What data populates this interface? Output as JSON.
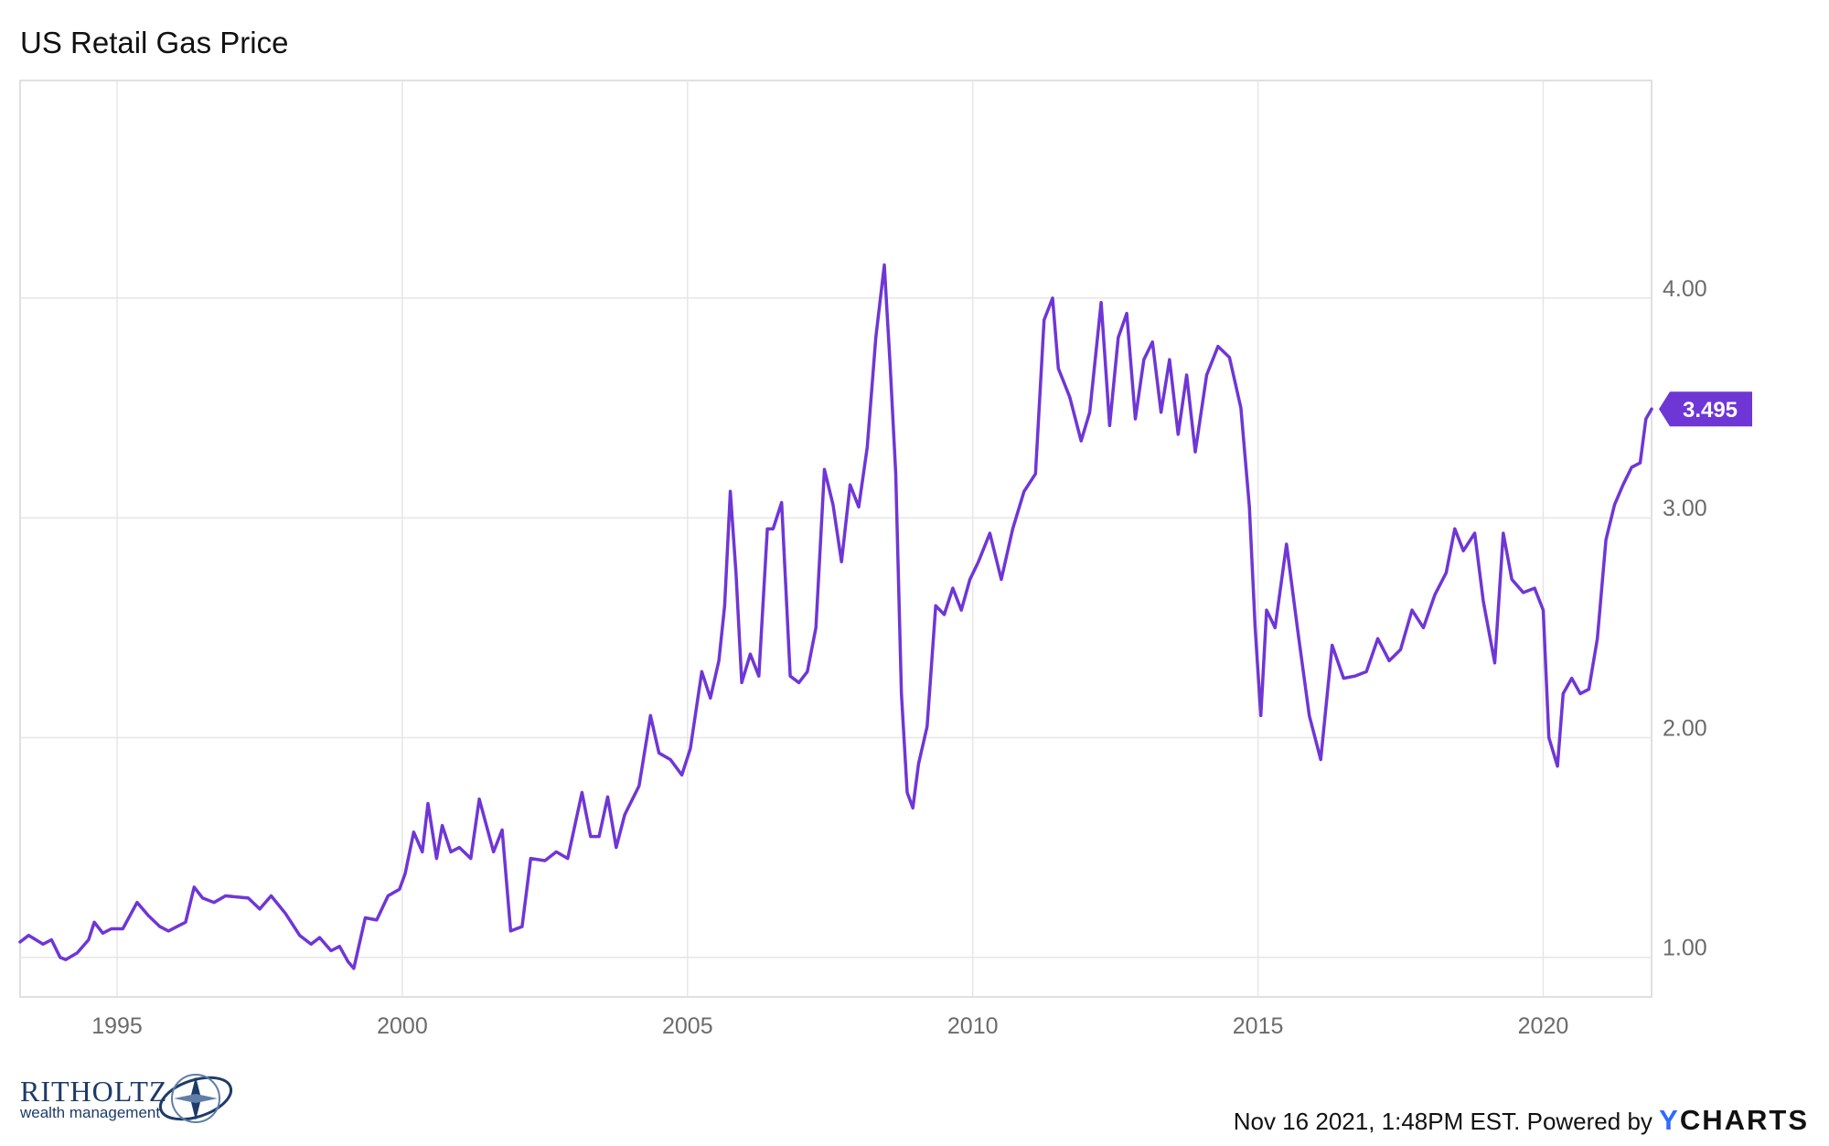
{
  "title": "US Retail Gas Price",
  "chart_data": {
    "type": "line",
    "title": "US Retail Gas Price",
    "xlabel": "",
    "ylabel": "",
    "x_ticks": [
      1995,
      2000,
      2005,
      2010,
      2015,
      2020
    ],
    "x_tick_labels": [
      "1995",
      "2000",
      "2005",
      "2010",
      "2015",
      "2020"
    ],
    "y_ticks": [
      1.0,
      2.0,
      3.0,
      4.0
    ],
    "y_tick_labels": [
      "1.00",
      "2.00",
      "3.00",
      "4.00"
    ],
    "xlim": [
      1993.3,
      2021.9
    ],
    "ylim": [
      0.82,
      4.99
    ],
    "grid": true,
    "y_axis_side": "right",
    "line_color": "#6f36d6",
    "last_value_label": "3.495",
    "series": [
      {
        "x": [
          1993.3,
          1993.45,
          1993.7,
          1993.85,
          1994.0,
          1994.1,
          1994.3,
          1994.5,
          1994.6,
          1994.75,
          1994.9,
          1995.1,
          1995.35,
          1995.55,
          1995.75,
          1995.9,
          1996.2,
          1996.35,
          1996.5,
          1996.7,
          1996.9,
          1997.3,
          1997.5,
          1997.7,
          1997.95,
          1998.2,
          1998.4,
          1998.55,
          1998.75,
          1998.9,
          1999.05,
          1999.15,
          1999.35,
          1999.55,
          1999.75,
          1999.95,
          2000.05,
          2000.2,
          2000.35,
          2000.45,
          2000.6,
          2000.7,
          2000.85,
          2001.0,
          2001.2,
          2001.35,
          2001.6,
          2001.75,
          2001.9,
          2002.1,
          2002.25,
          2002.5,
          2002.7,
          2002.9,
          2003.15,
          2003.3,
          2003.45,
          2003.6,
          2003.75,
          2003.9,
          2004.15,
          2004.35,
          2004.5,
          2004.7,
          2004.9,
          2005.05,
          2005.25,
          2005.4,
          2005.55,
          2005.65,
          2005.75,
          2005.85,
          2005.95,
          2006.1,
          2006.25,
          2006.4,
          2006.5,
          2006.65,
          2006.8,
          2006.95,
          2007.1,
          2007.25,
          2007.4,
          2007.55,
          2007.7,
          2007.85,
          2008.0,
          2008.15,
          2008.3,
          2008.45,
          2008.55,
          2008.65,
          2008.75,
          2008.85,
          2008.95,
          2009.05,
          2009.2,
          2009.35,
          2009.5,
          2009.65,
          2009.8,
          2009.95,
          2010.1,
          2010.3,
          2010.5,
          2010.7,
          2010.9,
          2011.1,
          2011.25,
          2011.4,
          2011.5,
          2011.7,
          2011.9,
          2012.05,
          2012.25,
          2012.4,
          2012.55,
          2012.7,
          2012.85,
          2013.0,
          2013.15,
          2013.3,
          2013.45,
          2013.6,
          2013.75,
          2013.9,
          2014.1,
          2014.3,
          2014.5,
          2014.7,
          2014.85,
          2014.95,
          2015.05,
          2015.15,
          2015.3,
          2015.5,
          2015.7,
          2015.9,
          2016.1,
          2016.3,
          2016.5,
          2016.7,
          2016.9,
          2017.1,
          2017.3,
          2017.5,
          2017.7,
          2017.9,
          2018.1,
          2018.3,
          2018.45,
          2018.6,
          2018.8,
          2018.95,
          2019.15,
          2019.3,
          2019.45,
          2019.65,
          2019.85,
          2020.0,
          2020.1,
          2020.25,
          2020.35,
          2020.5,
          2020.65,
          2020.8,
          2020.95,
          2021.1,
          2021.25,
          2021.4,
          2021.55,
          2021.7,
          2021.8,
          2021.9
        ],
        "y": [
          1.07,
          1.1,
          1.06,
          1.08,
          1.0,
          0.99,
          1.02,
          1.08,
          1.16,
          1.11,
          1.13,
          1.13,
          1.25,
          1.19,
          1.14,
          1.12,
          1.16,
          1.32,
          1.27,
          1.25,
          1.28,
          1.27,
          1.22,
          1.28,
          1.2,
          1.1,
          1.06,
          1.09,
          1.03,
          1.05,
          0.98,
          0.95,
          1.18,
          1.17,
          1.28,
          1.31,
          1.38,
          1.57,
          1.48,
          1.7,
          1.45,
          1.6,
          1.48,
          1.5,
          1.45,
          1.72,
          1.48,
          1.58,
          1.12,
          1.14,
          1.45,
          1.44,
          1.48,
          1.45,
          1.75,
          1.55,
          1.55,
          1.73,
          1.5,
          1.65,
          1.78,
          2.1,
          1.93,
          1.9,
          1.83,
          1.95,
          2.3,
          2.18,
          2.35,
          2.6,
          3.12,
          2.75,
          2.25,
          2.38,
          2.28,
          2.95,
          2.95,
          3.07,
          2.28,
          2.25,
          2.3,
          2.5,
          3.22,
          3.06,
          2.8,
          3.15,
          3.05,
          3.32,
          3.82,
          4.15,
          3.7,
          3.2,
          2.2,
          1.75,
          1.68,
          1.88,
          2.05,
          2.6,
          2.56,
          2.68,
          2.58,
          2.72,
          2.8,
          2.93,
          2.72,
          2.95,
          3.12,
          3.2,
          3.9,
          4.0,
          3.68,
          3.55,
          3.35,
          3.48,
          3.98,
          3.42,
          3.82,
          3.93,
          3.45,
          3.72,
          3.8,
          3.48,
          3.72,
          3.38,
          3.65,
          3.3,
          3.65,
          3.78,
          3.73,
          3.5,
          3.05,
          2.5,
          2.1,
          2.58,
          2.5,
          2.88,
          2.48,
          2.1,
          1.9,
          2.42,
          2.27,
          2.28,
          2.3,
          2.45,
          2.35,
          2.4,
          2.58,
          2.5,
          2.65,
          2.75,
          2.95,
          2.85,
          2.93,
          2.62,
          2.34,
          2.93,
          2.72,
          2.66,
          2.68,
          2.58,
          2.0,
          1.87,
          2.2,
          2.27,
          2.2,
          2.22,
          2.45,
          2.9,
          3.06,
          3.15,
          3.23,
          3.25,
          3.45,
          3.495
        ]
      }
    ]
  },
  "logo": {
    "name": "RITHOLTZ",
    "subtitle": "wealth management"
  },
  "footer": {
    "timestamp_text": "Nov 16 2021, 1:48PM EST. Powered by",
    "brand_prefix": "Y",
    "brand_rest": "CHARTS"
  }
}
